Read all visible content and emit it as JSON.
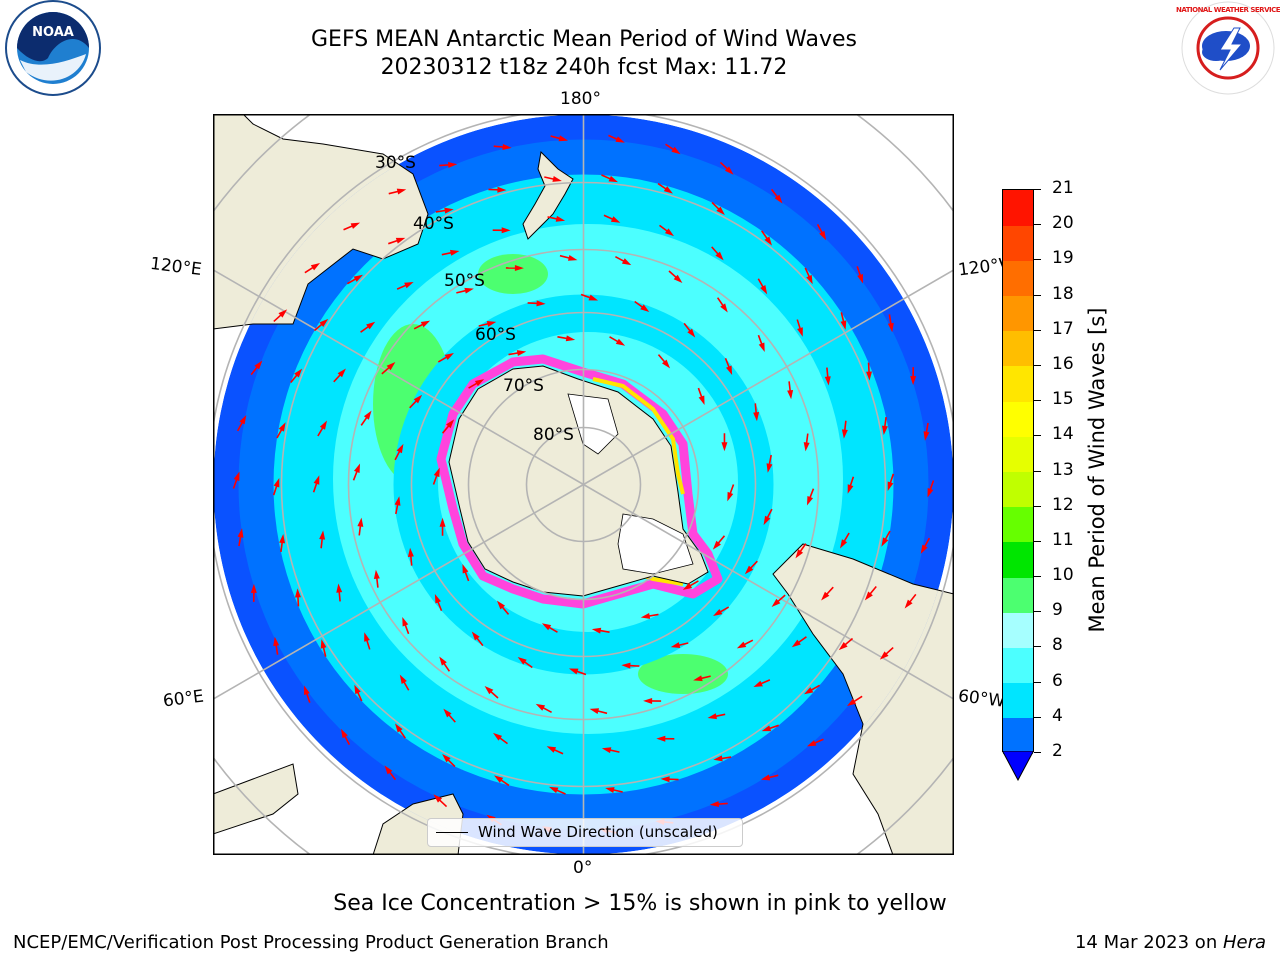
{
  "title": {
    "line1": "GEFS MEAN Antarctic Mean Period of Wind Waves",
    "line2": "20230312 t18z 240h fcst   Max: 11.72"
  },
  "logos": {
    "left": "NOAA",
    "right": "NATIONAL WEATHER SERVICE"
  },
  "map": {
    "longitude_labels": {
      "top": "180°",
      "bottom": "0°",
      "upper_left": "120°E",
      "lower_left": "60°E",
      "upper_right": "120°W",
      "lower_right": "60°W"
    },
    "latitude_labels": [
      "30°S",
      "40°S",
      "50°S",
      "60°S",
      "70°S",
      "80°S"
    ],
    "legend": "Wind Wave Direction (unscaled)",
    "colors": {
      "land": "#eeecd9",
      "ice_pink": "#ff44dd",
      "ice_yellow": "#ffe400",
      "arrow": "#ff0000",
      "grid": "#b4b4b4"
    }
  },
  "colorbar": {
    "label": "Mean Period of Wind Waves [s]",
    "ticks": [
      "2",
      "4",
      "6",
      "8",
      "9",
      "10",
      "11",
      "12",
      "13",
      "14",
      "15",
      "16",
      "17",
      "18",
      "19",
      "20",
      "21"
    ],
    "colors": [
      "#0072ff",
      "#00e5ff",
      "#4cffff",
      "#a6ffff",
      "#4cff70",
      "#00e600",
      "#66ff00",
      "#c0ff00",
      "#e6ff00",
      "#ffff00",
      "#ffe600",
      "#ffbe00",
      "#ff9600",
      "#ff6e00",
      "#ff4600",
      "#ff1400",
      "#ff0000"
    ],
    "under_color": "#0000ff"
  },
  "footer": {
    "note": "Sea Ice Concentration > 15% is shown in pink to yellow",
    "credit": "NCEP/EMC/Verification Post Processing Product Generation Branch",
    "date": "14 Mar 2023 on ",
    "machine": "Hera"
  }
}
